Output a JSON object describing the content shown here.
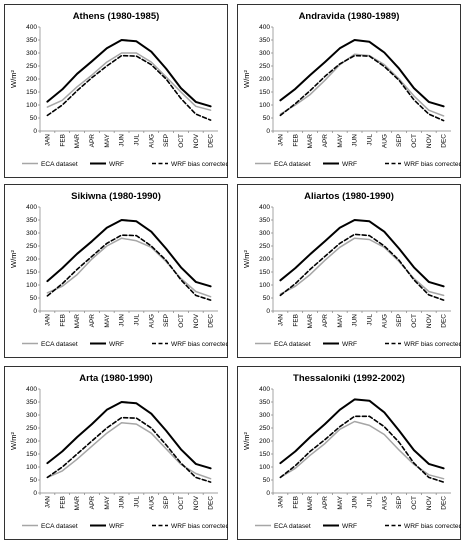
{
  "legend_labels": [
    "ECA dataset",
    "WRF",
    "WRF bias corrected"
  ],
  "chart_data": [
    {
      "type": "line",
      "title": "Athens (1980-1985)",
      "ylabel": "W/m²",
      "ylim": [
        0,
        400
      ],
      "yticks": [
        "0",
        "50",
        "100",
        "150",
        "200",
        "250",
        "300",
        "350",
        "400"
      ],
      "categories": [
        "JAN",
        "FEB",
        "MAR",
        "APR",
        "MAY",
        "JUN",
        "JUL",
        "AUG",
        "SEP",
        "OCT",
        "NOV",
        "DEC"
      ],
      "series": [
        {
          "name": "ECA dataset",
          "style": "gray",
          "values": [
            92,
            118,
            170,
            215,
            265,
            300,
            300,
            265,
            208,
            150,
            95,
            80
          ]
        },
        {
          "name": "WRF",
          "style": "solid",
          "values": [
            113,
            160,
            220,
            268,
            318,
            350,
            345,
            305,
            240,
            165,
            112,
            95
          ]
        },
        {
          "name": "WRF bias corrected",
          "style": "dashed",
          "values": [
            60,
            100,
            155,
            205,
            250,
            290,
            288,
            255,
            200,
            125,
            65,
            42
          ]
        }
      ],
      "legend": "bottom"
    },
    {
      "type": "line",
      "title": "Andravida (1980-1989)",
      "ylabel": "W/m²",
      "ylim": [
        0,
        400
      ],
      "yticks": [
        "0",
        "50",
        "100",
        "150",
        "200",
        "250",
        "300",
        "350",
        "400"
      ],
      "categories": [
        "JAN",
        "FEB",
        "MAR",
        "APR",
        "MAY",
        "JUN",
        "JUL",
        "AUG",
        "SEP",
        "OCT",
        "NOV",
        "DEC"
      ],
      "series": [
        {
          "name": "ECA dataset",
          "style": "gray",
          "values": [
            65,
            100,
            140,
            195,
            255,
            295,
            290,
            255,
            200,
            135,
            80,
            58
          ]
        },
        {
          "name": "WRF",
          "style": "solid",
          "values": [
            118,
            162,
            215,
            265,
            318,
            350,
            343,
            302,
            240,
            165,
            112,
            95
          ]
        },
        {
          "name": "WRF bias corrected",
          "style": "dashed",
          "values": [
            60,
            105,
            155,
            210,
            258,
            290,
            288,
            248,
            195,
            120,
            65,
            40
          ]
        }
      ],
      "legend": "bottom"
    },
    {
      "type": "line",
      "title": "Sikiwna (1980-1990)",
      "ylabel": "W/m²",
      "ylim": [
        0,
        400
      ],
      "yticks": [
        "0",
        "50",
        "100",
        "150",
        "200",
        "250",
        "300",
        "350",
        "400"
      ],
      "categories": [
        "JAN",
        "FEB",
        "MAR",
        "APR",
        "MAY",
        "JUN",
        "JUL",
        "AUG",
        "SEP",
        "OCT",
        "NOV",
        "DEC"
      ],
      "series": [
        {
          "name": "ECA dataset",
          "style": "gray",
          "values": [
            70,
            95,
            140,
            200,
            250,
            280,
            270,
            245,
            190,
            125,
            75,
            55
          ]
        },
        {
          "name": "WRF",
          "style": "solid",
          "values": [
            115,
            165,
            220,
            268,
            320,
            350,
            345,
            305,
            240,
            168,
            112,
            95
          ]
        },
        {
          "name": "WRF bias corrected",
          "style": "dashed",
          "values": [
            58,
            105,
            160,
            210,
            260,
            292,
            290,
            250,
            195,
            120,
            60,
            42
          ]
        }
      ],
      "legend": "bottom"
    },
    {
      "type": "line",
      "title": "Aliartos (1980-1990)",
      "ylabel": "W/m²",
      "ylim": [
        0,
        400
      ],
      "yticks": [
        "0",
        "50",
        "100",
        "150",
        "200",
        "250",
        "300",
        "350",
        "400"
      ],
      "categories": [
        "JAN",
        "FEB",
        "MAR",
        "APR",
        "MAY",
        "JUN",
        "JUL",
        "AUG",
        "SEP",
        "OCT",
        "NOV",
        "DEC"
      ],
      "series": [
        {
          "name": "ECA dataset",
          "style": "gray",
          "values": [
            65,
            95,
            140,
            195,
            245,
            280,
            275,
            245,
            190,
            125,
            75,
            60
          ]
        },
        {
          "name": "WRF",
          "style": "solid",
          "values": [
            118,
            165,
            218,
            268,
            320,
            350,
            345,
            305,
            240,
            168,
            112,
            95
          ]
        },
        {
          "name": "WRF bias corrected",
          "style": "dashed",
          "values": [
            60,
            105,
            160,
            210,
            260,
            295,
            290,
            250,
            195,
            120,
            62,
            42
          ]
        }
      ],
      "legend": "bottom"
    },
    {
      "type": "line",
      "title": "Arta (1980-1990)",
      "ylabel": "W/m²",
      "ylim": [
        0,
        400
      ],
      "yticks": [
        "0",
        "50",
        "100",
        "150",
        "200",
        "250",
        "300",
        "350",
        "400"
      ],
      "categories": [
        "JAN",
        "FEB",
        "MAR",
        "APR",
        "MAY",
        "JUN",
        "JUL",
        "AUG",
        "SEP",
        "OCT",
        "NOV",
        "DEC"
      ],
      "series": [
        {
          "name": "ECA dataset",
          "style": "gray",
          "values": [
            60,
            85,
            130,
            180,
            230,
            270,
            265,
            230,
            170,
            110,
            75,
            55
          ]
        },
        {
          "name": "WRF",
          "style": "solid",
          "values": [
            115,
            160,
            215,
            265,
            320,
            350,
            345,
            305,
            240,
            168,
            112,
            95
          ]
        },
        {
          "name": "WRF bias corrected",
          "style": "dashed",
          "values": [
            60,
            100,
            150,
            200,
            250,
            290,
            288,
            250,
            185,
            115,
            60,
            42
          ]
        }
      ],
      "legend": "bottom"
    },
    {
      "type": "line",
      "title": "Thessaloniki (1992-2002)",
      "ylabel": "W/m²",
      "ylim": [
        0,
        400
      ],
      "yticks": [
        "0",
        "50",
        "100",
        "150",
        "200",
        "250",
        "300",
        "350",
        "400"
      ],
      "categories": [
        "JAN",
        "FEB",
        "MAR",
        "APR",
        "MAY",
        "JUN",
        "JUL",
        "AUG",
        "SEP",
        "OCT",
        "NOV",
        "DEC"
      ],
      "series": [
        {
          "name": "ECA dataset",
          "style": "gray",
          "values": [
            60,
            95,
            145,
            190,
            245,
            275,
            260,
            225,
            165,
            110,
            70,
            55
          ]
        },
        {
          "name": "WRF",
          "style": "solid",
          "values": [
            115,
            160,
            215,
            265,
            320,
            360,
            355,
            310,
            240,
            165,
            112,
            95
          ]
        },
        {
          "name": "WRF bias corrected",
          "style": "dashed",
          "values": [
            60,
            105,
            160,
            205,
            255,
            295,
            295,
            255,
            195,
            115,
            60,
            42
          ]
        }
      ],
      "legend": "bottom"
    }
  ]
}
